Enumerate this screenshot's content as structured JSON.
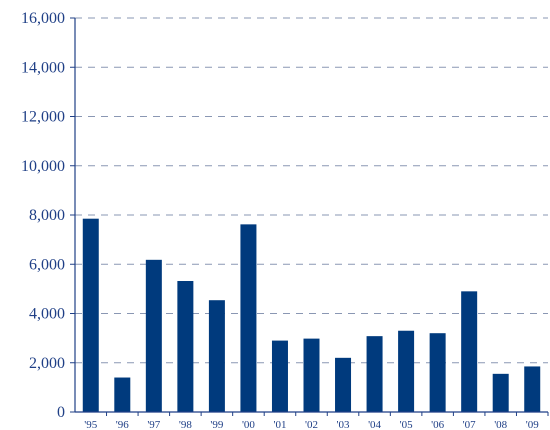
{
  "chart_data": {
    "type": "bar",
    "categories": [
      "'95",
      "'96",
      "'97",
      "'98",
      "'99",
      "'00",
      "'01",
      "'02",
      "'03",
      "'04",
      "'05",
      "'06",
      "'07",
      "'08",
      "'09"
    ],
    "values": [
      7850,
      1400,
      6180,
      5320,
      4540,
      7620,
      2900,
      2980,
      2200,
      3080,
      3300,
      3200,
      4900,
      1550,
      1850
    ],
    "yticks": [
      "0",
      "2,000",
      "4,000",
      "6,000",
      "8,000",
      "10,000",
      "12,000",
      "14,000",
      "16,000"
    ],
    "ylim": [
      0,
      16000
    ],
    "grid": true,
    "bar_color": "#003a7d",
    "axis_color": "#1f3f86",
    "title": "",
    "xlabel": "",
    "ylabel": ""
  }
}
